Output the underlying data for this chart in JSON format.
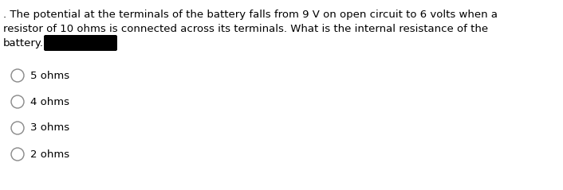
{
  "question_text_line1": ". The potential at the terminals of the battery falls from 9 V on open circuit to 6 volts when a",
  "question_text_line2": "resistor of 10 ohms is connected across its terminals. What is the internal resistance of the",
  "question_text_line3": "battery.",
  "options": [
    "5 ohms",
    "4 ohms",
    "3 ohms",
    "2 ohms"
  ],
  "background_color": "#ffffff",
  "text_color": "#000000",
  "font_size": 9.5,
  "option_font_size": 9.5,
  "fig_width": 7.06,
  "fig_height": 2.39,
  "dpi": 100
}
